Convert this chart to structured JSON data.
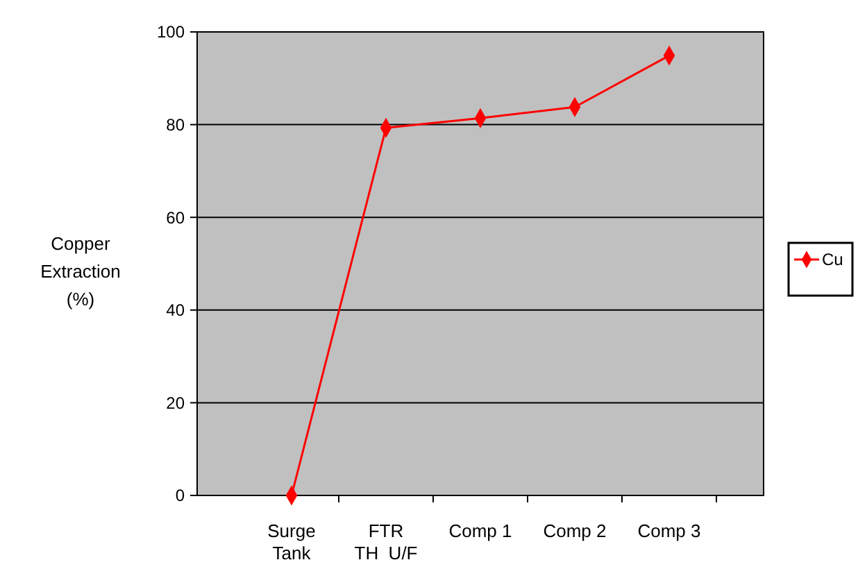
{
  "chart_data": {
    "type": "line",
    "ylabel": "Copper\nExtraction\n(%)",
    "categories": [
      "Surge\nTank",
      "FTR\nTH  U/F",
      "Comp 1",
      "Comp 2",
      "Comp 3"
    ],
    "series": [
      {
        "name": "Cu",
        "color": "#ff0000",
        "values": [
          0,
          79.3,
          81.4,
          83.8,
          94.9
        ]
      }
    ],
    "ylim": [
      0,
      100
    ],
    "yticks": [
      0,
      20,
      40,
      60,
      80,
      100
    ],
    "grid": "y",
    "legend": "right",
    "marker": "diamond",
    "line_style": "solid"
  }
}
